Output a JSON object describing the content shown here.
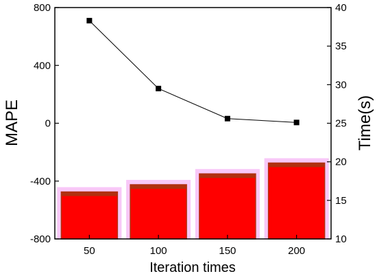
{
  "chart_data": {
    "type": "bar",
    "categories": [
      "50",
      "100",
      "150",
      "200"
    ],
    "xlabel": "Iteration times",
    "ylabel_left": "MAPE",
    "ylabel_right": "Time(s)",
    "ylim_left": [
      -800,
      800
    ],
    "ylim_right": [
      10,
      40
    ],
    "yticks_left": [
      -800,
      -400,
      0,
      400,
      800
    ],
    "yticks_right": [
      10,
      15,
      20,
      25,
      30,
      35,
      40
    ],
    "series": [
      {
        "kind": "bar",
        "axis": "left",
        "values": [
          -475,
          -425,
          -350,
          -275
        ],
        "colors": {
          "fill": "#ff0000",
          "top_band": "#b03010",
          "halo": "#f8c8f8"
        }
      },
      {
        "kind": "line",
        "axis": "right",
        "values": [
          38.3,
          29.5,
          25.6,
          25.1
        ],
        "colors": {
          "line": "#000000",
          "marker": "#000000"
        }
      }
    ],
    "grid": false,
    "legend": "none"
  }
}
